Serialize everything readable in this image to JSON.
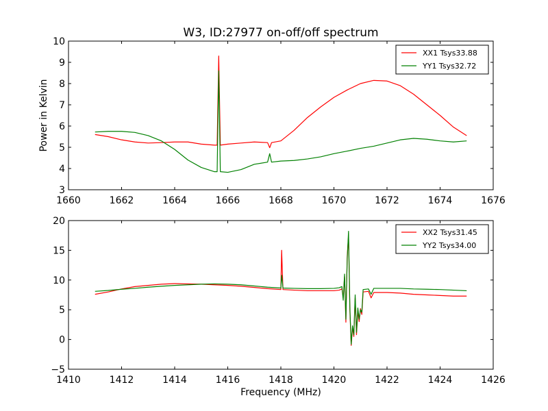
{
  "chart_data": [
    {
      "type": "line",
      "title": "W3, ID:27977 on-off/off spectrum",
      "xlabel": "",
      "ylabel": "Power in Kelvin",
      "xlim": [
        1660,
        1676
      ],
      "ylim": [
        3,
        10
      ],
      "xticks": [
        1660,
        1662,
        1664,
        1666,
        1668,
        1670,
        1672,
        1674,
        1676
      ],
      "yticks": [
        3,
        4,
        5,
        6,
        7,
        8,
        9,
        10
      ],
      "grid": false,
      "legend_position": "top-right",
      "series": [
        {
          "name": "XX1 Tsys33.88",
          "color": "#ff0000",
          "points": [
            [
              1661.0,
              5.6
            ],
            [
              1661.5,
              5.5
            ],
            [
              1662.0,
              5.35
            ],
            [
              1662.5,
              5.25
            ],
            [
              1663.0,
              5.2
            ],
            [
              1663.5,
              5.22
            ],
            [
              1664.0,
              5.25
            ],
            [
              1664.5,
              5.25
            ],
            [
              1665.0,
              5.15
            ],
            [
              1665.5,
              5.1
            ],
            [
              1665.6,
              5.1
            ],
            [
              1665.66,
              9.3
            ],
            [
              1665.72,
              5.1
            ],
            [
              1666.0,
              5.15
            ],
            [
              1666.5,
              5.2
            ],
            [
              1667.0,
              5.25
            ],
            [
              1667.5,
              5.22
            ],
            [
              1667.58,
              4.98
            ],
            [
              1667.65,
              5.22
            ],
            [
              1668.0,
              5.3
            ],
            [
              1668.5,
              5.8
            ],
            [
              1669.0,
              6.4
            ],
            [
              1669.5,
              6.9
            ],
            [
              1670.0,
              7.35
            ],
            [
              1670.5,
              7.7
            ],
            [
              1671.0,
              8.0
            ],
            [
              1671.5,
              8.15
            ],
            [
              1672.0,
              8.12
            ],
            [
              1672.5,
              7.9
            ],
            [
              1673.0,
              7.5
            ],
            [
              1673.5,
              7.0
            ],
            [
              1674.0,
              6.5
            ],
            [
              1674.5,
              5.95
            ],
            [
              1675.0,
              5.55
            ]
          ]
        },
        {
          "name": "YY1 Tsys32.72",
          "color": "#008000",
          "points": [
            [
              1661.0,
              5.72
            ],
            [
              1661.5,
              5.75
            ],
            [
              1662.0,
              5.75
            ],
            [
              1662.5,
              5.7
            ],
            [
              1663.0,
              5.55
            ],
            [
              1663.5,
              5.3
            ],
            [
              1664.0,
              4.9
            ],
            [
              1664.5,
              4.4
            ],
            [
              1665.0,
              4.05
            ],
            [
              1665.5,
              3.85
            ],
            [
              1665.6,
              3.85
            ],
            [
              1665.66,
              8.6
            ],
            [
              1665.72,
              3.85
            ],
            [
              1666.0,
              3.82
            ],
            [
              1666.5,
              3.95
            ],
            [
              1667.0,
              4.2
            ],
            [
              1667.5,
              4.3
            ],
            [
              1667.58,
              4.7
            ],
            [
              1667.65,
              4.3
            ],
            [
              1668.0,
              4.35
            ],
            [
              1668.5,
              4.38
            ],
            [
              1669.0,
              4.45
            ],
            [
              1669.5,
              4.55
            ],
            [
              1670.0,
              4.7
            ],
            [
              1670.5,
              4.82
            ],
            [
              1671.0,
              4.95
            ],
            [
              1671.5,
              5.05
            ],
            [
              1672.0,
              5.2
            ],
            [
              1672.5,
              5.35
            ],
            [
              1673.0,
              5.42
            ],
            [
              1673.5,
              5.38
            ],
            [
              1674.0,
              5.3
            ],
            [
              1674.5,
              5.25
            ],
            [
              1675.0,
              5.3
            ]
          ]
        }
      ]
    },
    {
      "type": "line",
      "title": "",
      "xlabel": "Frequency (MHz)",
      "ylabel": "",
      "xlim": [
        1410,
        1426
      ],
      "ylim": [
        -5,
        20
      ],
      "xticks": [
        1410,
        1412,
        1414,
        1416,
        1418,
        1420,
        1422,
        1424,
        1426
      ],
      "yticks": [
        -5,
        0,
        5,
        10,
        15,
        20
      ],
      "grid": false,
      "legend_position": "top-right",
      "series": [
        {
          "name": "XX2 Tsys31.45",
          "color": "#ff0000",
          "points": [
            [
              1411.0,
              7.6
            ],
            [
              1411.5,
              8.0
            ],
            [
              1412.0,
              8.5
            ],
            [
              1412.5,
              8.9
            ],
            [
              1413.0,
              9.1
            ],
            [
              1413.5,
              9.3
            ],
            [
              1414.0,
              9.4
            ],
            [
              1414.5,
              9.35
            ],
            [
              1415.0,
              9.3
            ],
            [
              1415.5,
              9.2
            ],
            [
              1416.0,
              9.1
            ],
            [
              1416.5,
              8.95
            ],
            [
              1417.0,
              8.75
            ],
            [
              1417.5,
              8.55
            ],
            [
              1418.0,
              8.4
            ],
            [
              1418.03,
              15.0
            ],
            [
              1418.08,
              8.4
            ],
            [
              1418.5,
              8.3
            ],
            [
              1419.0,
              8.2
            ],
            [
              1419.5,
              8.2
            ],
            [
              1420.0,
              8.2
            ],
            [
              1420.2,
              8.3
            ],
            [
              1420.3,
              8.5
            ],
            [
              1420.35,
              7.2
            ],
            [
              1420.4,
              10.6
            ],
            [
              1420.45,
              2.9
            ],
            [
              1420.5,
              14.0
            ],
            [
              1420.55,
              17.5
            ],
            [
              1420.6,
              5.0
            ],
            [
              1420.65,
              -1.0
            ],
            [
              1420.7,
              2.0
            ],
            [
              1420.75,
              0.5
            ],
            [
              1420.8,
              7.0
            ],
            [
              1420.85,
              0.8
            ],
            [
              1420.9,
              4.8
            ],
            [
              1420.95,
              3.0
            ],
            [
              1421.0,
              5.2
            ],
            [
              1421.05,
              4.2
            ],
            [
              1421.1,
              8.0
            ],
            [
              1421.3,
              8.1
            ],
            [
              1421.4,
              7.0
            ],
            [
              1421.5,
              7.9
            ],
            [
              1422.0,
              7.9
            ],
            [
              1422.5,
              7.8
            ],
            [
              1423.0,
              7.6
            ],
            [
              1423.5,
              7.5
            ],
            [
              1424.0,
              7.4
            ],
            [
              1424.5,
              7.3
            ],
            [
              1425.0,
              7.3
            ]
          ]
        },
        {
          "name": "YY2 Tsys34.00",
          "color": "#008000",
          "points": [
            [
              1411.0,
              8.1
            ],
            [
              1411.5,
              8.25
            ],
            [
              1412.0,
              8.45
            ],
            [
              1412.5,
              8.6
            ],
            [
              1413.0,
              8.8
            ],
            [
              1413.5,
              8.95
            ],
            [
              1414.0,
              9.1
            ],
            [
              1414.5,
              9.2
            ],
            [
              1415.0,
              9.3
            ],
            [
              1415.5,
              9.35
            ],
            [
              1416.0,
              9.3
            ],
            [
              1416.5,
              9.2
            ],
            [
              1417.0,
              9.0
            ],
            [
              1417.5,
              8.8
            ],
            [
              1418.0,
              8.65
            ],
            [
              1418.03,
              10.8
            ],
            [
              1418.08,
              8.65
            ],
            [
              1418.5,
              8.6
            ],
            [
              1419.0,
              8.55
            ],
            [
              1419.5,
              8.55
            ],
            [
              1420.0,
              8.6
            ],
            [
              1420.2,
              8.7
            ],
            [
              1420.3,
              8.9
            ],
            [
              1420.35,
              6.6
            ],
            [
              1420.4,
              11.0
            ],
            [
              1420.45,
              3.4
            ],
            [
              1420.5,
              13.5
            ],
            [
              1420.55,
              18.2
            ],
            [
              1420.6,
              5.5
            ],
            [
              1420.65,
              -0.8
            ],
            [
              1420.7,
              2.3
            ],
            [
              1420.75,
              0.8
            ],
            [
              1420.8,
              7.5
            ],
            [
              1420.85,
              1.2
            ],
            [
              1420.9,
              5.3
            ],
            [
              1420.95,
              3.4
            ],
            [
              1421.0,
              5.0
            ],
            [
              1421.05,
              4.6
            ],
            [
              1421.1,
              8.4
            ],
            [
              1421.3,
              8.5
            ],
            [
              1421.4,
              7.6
            ],
            [
              1421.5,
              8.6
            ],
            [
              1422.0,
              8.6
            ],
            [
              1422.5,
              8.6
            ],
            [
              1423.0,
              8.5
            ],
            [
              1423.5,
              8.45
            ],
            [
              1424.0,
              8.4
            ],
            [
              1424.5,
              8.3
            ],
            [
              1425.0,
              8.2
            ]
          ]
        }
      ]
    }
  ]
}
